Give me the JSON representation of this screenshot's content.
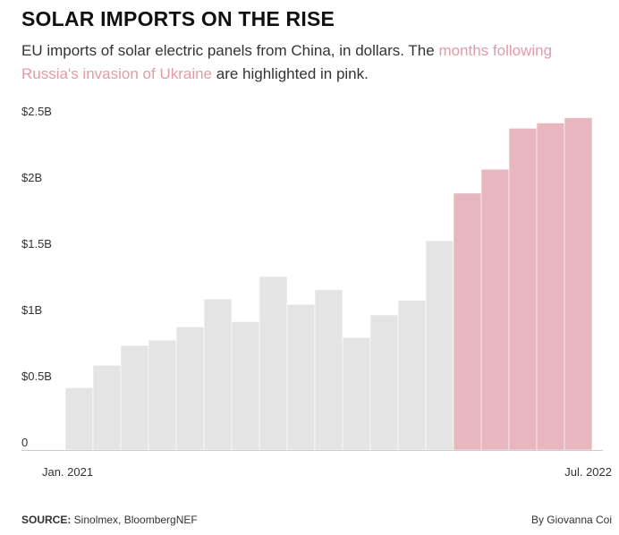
{
  "header": {
    "title": "SOLAR IMPORTS ON THE RISE",
    "subtitle_before": "EU imports of solar electric panels from China, in dollars. The ",
    "subtitle_highlight": "months following Russia's invasion of Ukraine",
    "subtitle_after": " are highlighted in pink."
  },
  "footer": {
    "source_label": "SOURCE:",
    "source_text": " Sinolmex, BloombergNEF",
    "byline": "By Giovanna Coi"
  },
  "colors": {
    "base_bar": "#e4e4e4",
    "highlight_bar": "#e8b6bf",
    "highlight_text": "#e39aab",
    "axis": "#cccccc"
  },
  "chart_data": {
    "type": "bar",
    "x_start_label": "Jan. 2021",
    "x_end_label": "Jul. 2022",
    "y_ticks": [
      {
        "value": 0,
        "label": "0"
      },
      {
        "value": 0.5,
        "label": "$0.5B"
      },
      {
        "value": 1.0,
        "label": "$1B"
      },
      {
        "value": 1.5,
        "label": "$1.5B"
      },
      {
        "value": 2.0,
        "label": "$2B"
      },
      {
        "value": 2.5,
        "label": "$2.5B"
      }
    ],
    "ylim": [
      0,
      2.5
    ],
    "y_unit": "billion USD",
    "highlight_from_index": 14,
    "values": [
      0.47,
      0.64,
      0.79,
      0.83,
      0.93,
      1.14,
      0.97,
      1.31,
      1.1,
      1.21,
      0.85,
      1.02,
      1.13,
      1.58,
      1.94,
      2.12,
      2.43,
      2.47,
      2.51
    ]
  }
}
